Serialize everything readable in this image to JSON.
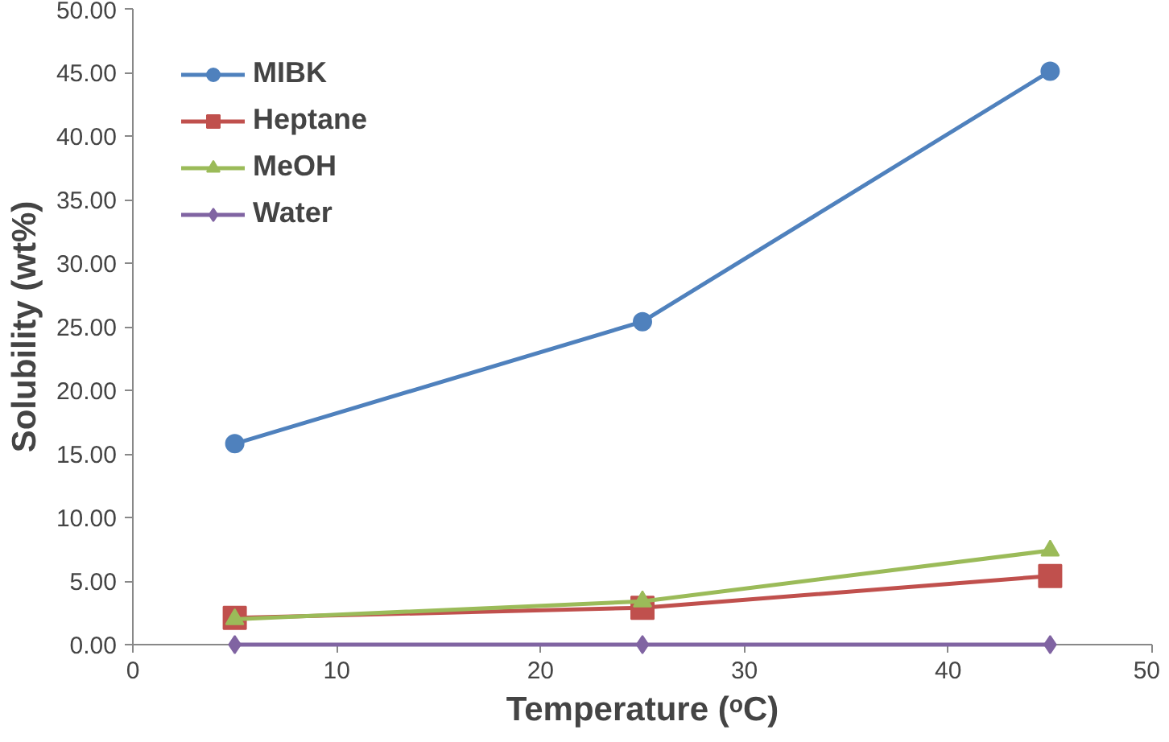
{
  "chart_data": {
    "type": "line",
    "xlabel": "Temperature (ᵒC)",
    "ylabel": "Solubility (wt%)",
    "xlim": [
      0,
      50
    ],
    "xticks": [
      0,
      10,
      20,
      30,
      40,
      50
    ],
    "ylim": [
      0,
      50
    ],
    "yticks": [
      {
        "value": 0,
        "label": "0.00"
      },
      {
        "value": 5,
        "label": "5.00"
      },
      {
        "value": 10,
        "label": "10.00"
      },
      {
        "value": 15,
        "label": "15.00"
      },
      {
        "value": 20,
        "label": "20.00"
      },
      {
        "value": 25,
        "label": "25.00"
      },
      {
        "value": 30,
        "label": "30.00"
      },
      {
        "value": 35,
        "label": "35.00"
      },
      {
        "value": 40,
        "label": "40.00"
      },
      {
        "value": 45,
        "label": "45.00"
      },
      {
        "value": 50,
        "label": "50.00"
      }
    ],
    "x": [
      5,
      25,
      45
    ],
    "grid": false,
    "legend": "top left",
    "series": [
      {
        "name": "MIBK",
        "color": "#4f81bd",
        "marker": "circle",
        "values": [
          15.8,
          25.4,
          45.1
        ]
      },
      {
        "name": "Heptane",
        "color": "#c0504d",
        "marker": "square",
        "values": [
          2.1,
          2.9,
          5.4
        ]
      },
      {
        "name": "MeOH",
        "color": "#9bbb59",
        "marker": "triangle",
        "values": [
          2.0,
          3.4,
          7.4
        ]
      },
      {
        "name": "Water",
        "color": "#8064a2",
        "marker": "diamond",
        "values": [
          0,
          0,
          0
        ]
      }
    ]
  }
}
